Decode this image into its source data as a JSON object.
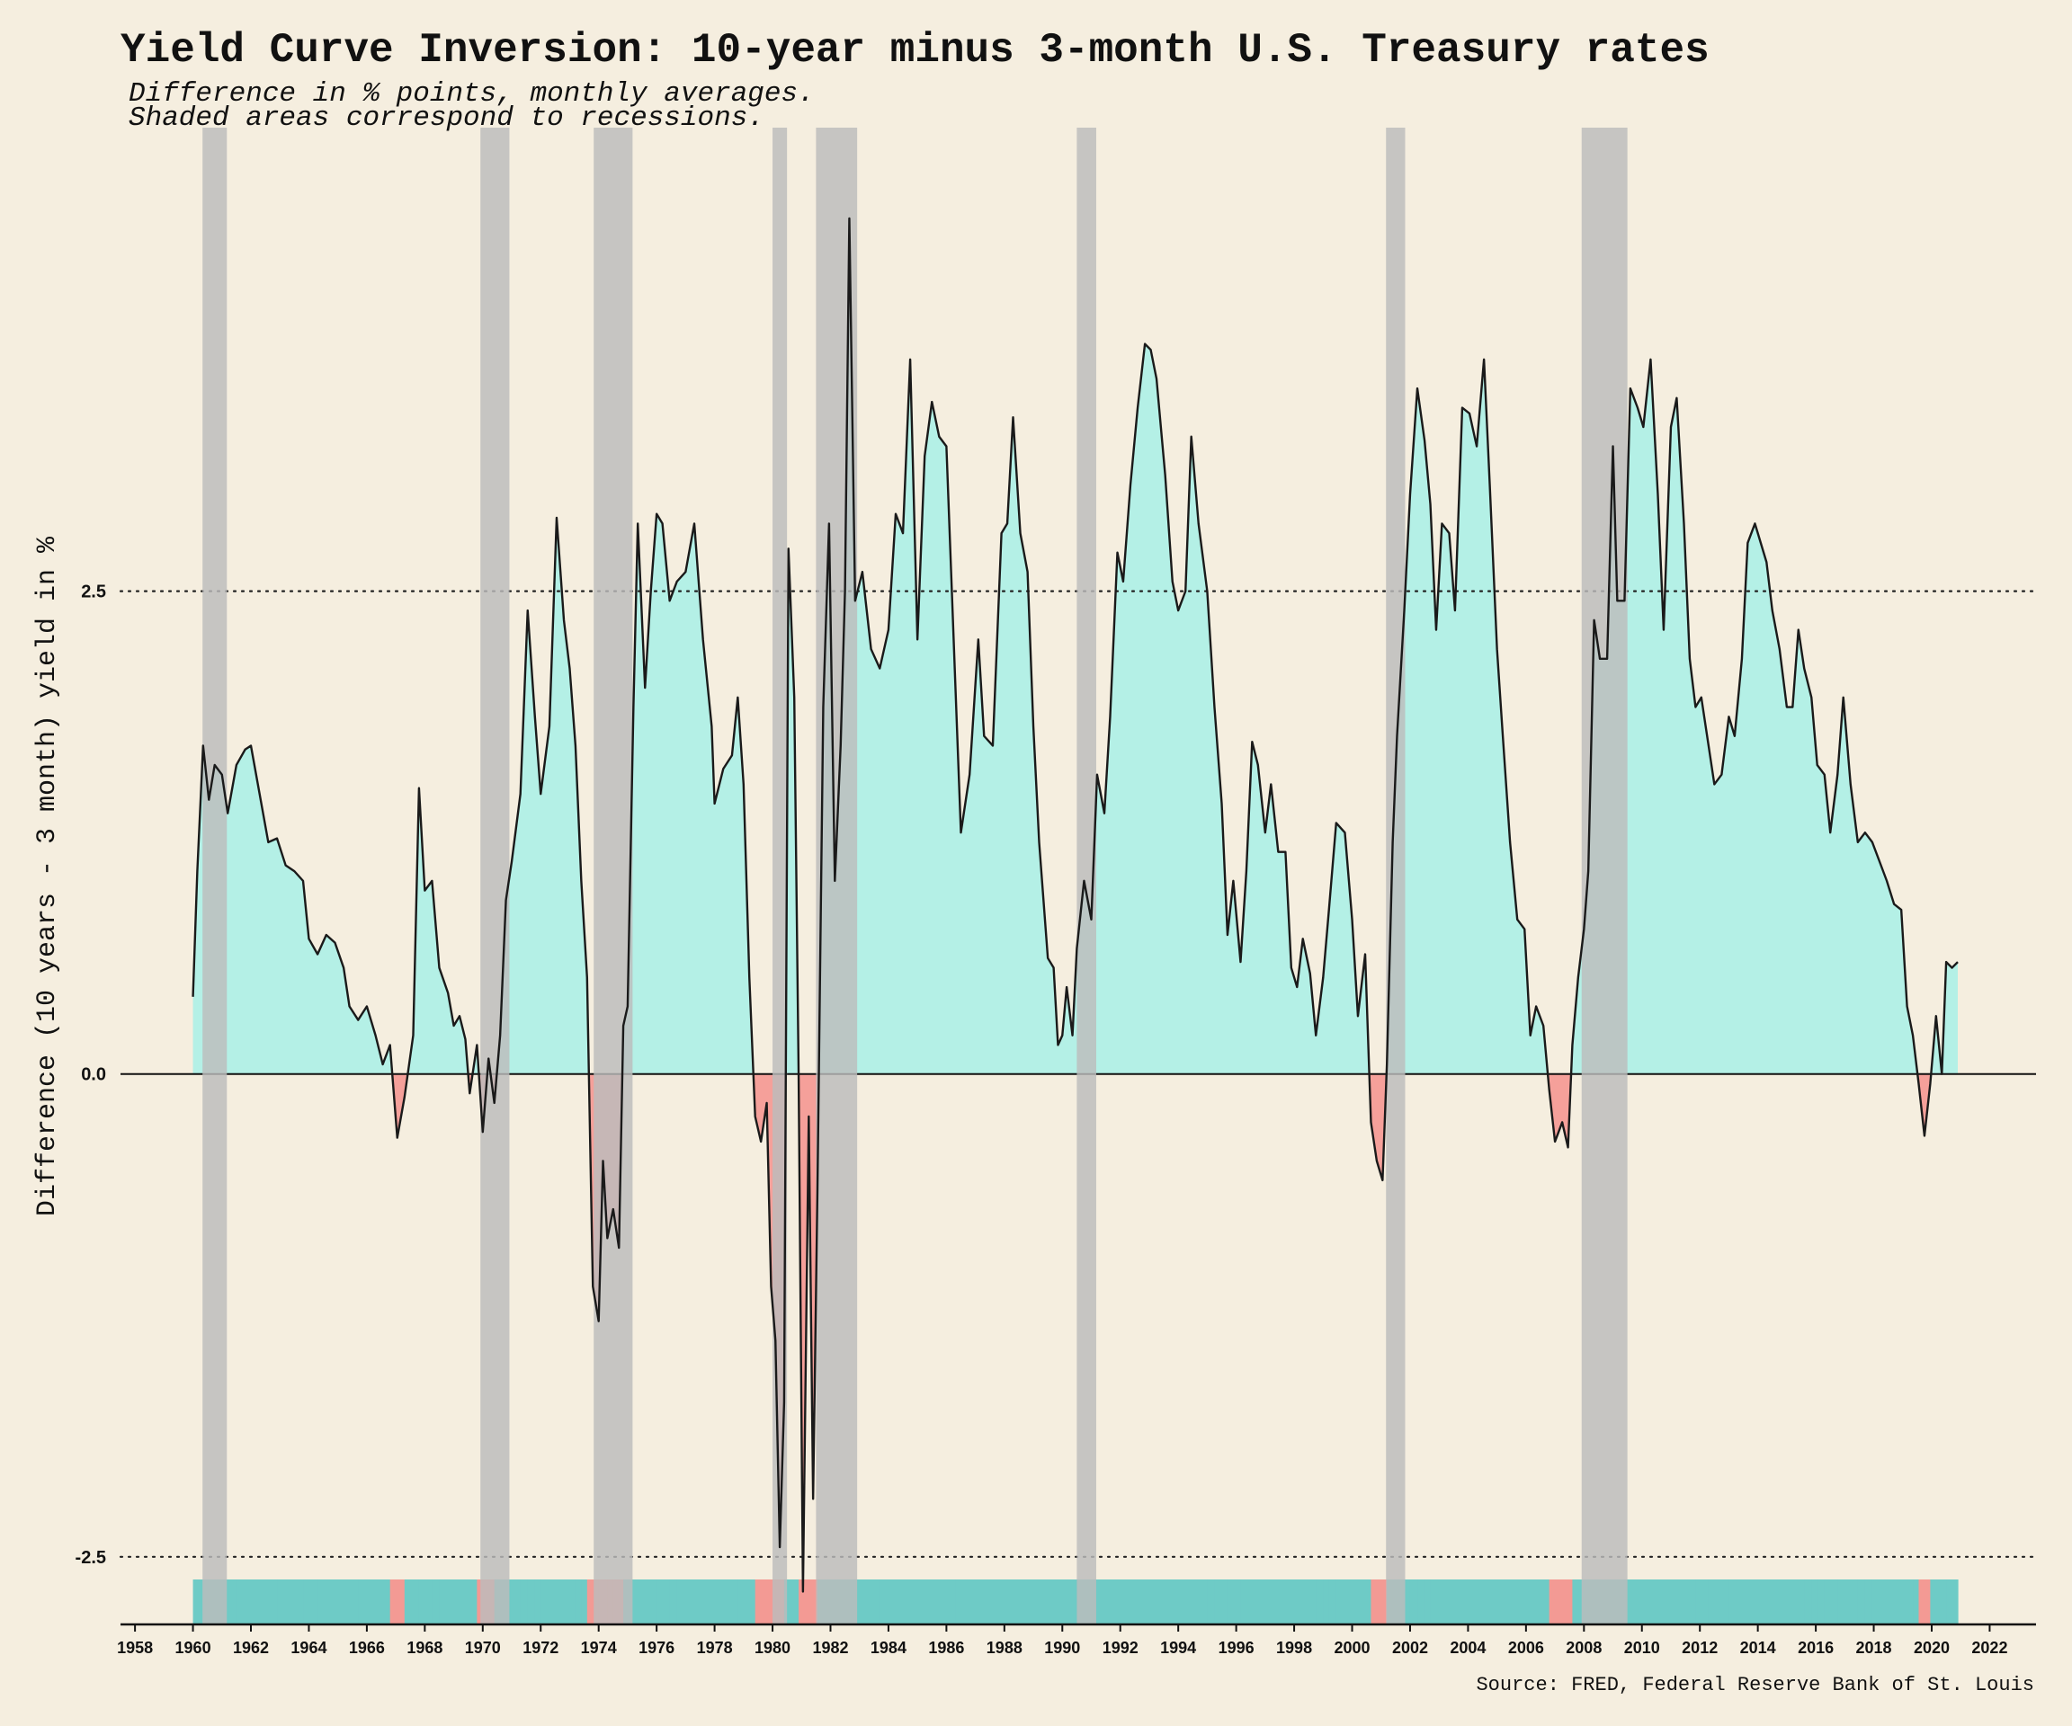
{
  "chart_data": {
    "type": "area",
    "title": "Yield Curve Inversion: 10-year minus 3-month U.S. Treasury rates",
    "subtitle_lines": [
      "Difference in % points, monthly averages.",
      "Shaded areas correspond to recessions."
    ],
    "ylabel": "Difference (10 years - 3 month) yield in %",
    "xlabel": "",
    "source": "Source: FRED, Federal Reserve Bank of St. Louis",
    "xlim": [
      1957.5,
      2023.6
    ],
    "ylim": [
      -2.85,
      4.9
    ],
    "y_ticks": [
      -2.5,
      0.0,
      2.5
    ],
    "y_tick_labels": [
      "-2.5",
      "0.0",
      "2.5"
    ],
    "x_ticks": [
      1958,
      1960,
      1962,
      1964,
      1966,
      1968,
      1970,
      1972,
      1974,
      1976,
      1978,
      1980,
      1982,
      1984,
      1986,
      1988,
      1990,
      1992,
      1994,
      1996,
      1998,
      2000,
      2002,
      2004,
      2006,
      2008,
      2010,
      2012,
      2014,
      2016,
      2018,
      2020,
      2022
    ],
    "x_tick_labels": [
      "1958",
      "1960",
      "1962",
      "1964",
      "1966",
      "1968",
      "1970",
      "1972",
      "1974",
      "1976",
      "1978",
      "1980",
      "1982",
      "1984",
      "1986",
      "1988",
      "1990",
      "1992",
      "1994",
      "1996",
      "1998",
      "2000",
      "2002",
      "2004",
      "2006",
      "2008",
      "2010",
      "2012",
      "2014",
      "2016",
      "2018",
      "2020",
      "2022"
    ],
    "grid": {
      "dotted_lines_at": [
        -2.5,
        2.5
      ],
      "zero_line": true
    },
    "colors": {
      "positive": "#b4f0e6",
      "negative": "#f5a09a",
      "line": "#1a1a1a",
      "recession": "#bcbcbc",
      "background": "#f5eedf",
      "strip_positive": "#6ecbc6",
      "strip_negative": "#f39a94"
    },
    "series": [
      {
        "points": [
          [
            1960.0,
            0.4
          ],
          [
            1960.15,
            1.05
          ],
          [
            1960.35,
            1.7
          ],
          [
            1960.55,
            1.42
          ],
          [
            1960.75,
            1.6
          ],
          [
            1961.0,
            1.55
          ],
          [
            1961.2,
            1.35
          ],
          [
            1961.5,
            1.6
          ],
          [
            1961.8,
            1.68
          ],
          [
            1962.0,
            1.7
          ],
          [
            1962.3,
            1.45
          ],
          [
            1962.6,
            1.2
          ],
          [
            1962.9,
            1.22
          ],
          [
            1963.2,
            1.08
          ],
          [
            1963.5,
            1.05
          ],
          [
            1963.8,
            1.0
          ],
          [
            1964.0,
            0.7
          ],
          [
            1964.3,
            0.62
          ],
          [
            1964.6,
            0.72
          ],
          [
            1964.9,
            0.68
          ],
          [
            1965.2,
            0.55
          ],
          [
            1965.4,
            0.35
          ],
          [
            1965.7,
            0.28
          ],
          [
            1966.0,
            0.35
          ],
          [
            1966.3,
            0.2
          ],
          [
            1966.55,
            0.05
          ],
          [
            1966.8,
            0.15
          ],
          [
            1967.05,
            -0.33
          ],
          [
            1967.3,
            -0.12
          ],
          [
            1967.6,
            0.2
          ],
          [
            1967.8,
            1.48
          ],
          [
            1968.0,
            0.95
          ],
          [
            1968.25,
            1.0
          ],
          [
            1968.5,
            0.55
          ],
          [
            1968.8,
            0.42
          ],
          [
            1969.0,
            0.25
          ],
          [
            1969.2,
            0.3
          ],
          [
            1969.4,
            0.18
          ],
          [
            1969.55,
            -0.1
          ],
          [
            1969.8,
            0.15
          ],
          [
            1970.0,
            -0.3
          ],
          [
            1970.2,
            0.08
          ],
          [
            1970.4,
            -0.15
          ],
          [
            1970.6,
            0.2
          ],
          [
            1970.8,
            0.9
          ],
          [
            1971.0,
            1.1
          ],
          [
            1971.3,
            1.45
          ],
          [
            1971.55,
            2.4
          ],
          [
            1971.8,
            1.85
          ],
          [
            1972.0,
            1.45
          ],
          [
            1972.3,
            1.8
          ],
          [
            1972.55,
            2.88
          ],
          [
            1972.8,
            2.35
          ],
          [
            1973.0,
            2.1
          ],
          [
            1973.2,
            1.7
          ],
          [
            1973.4,
            1.0
          ],
          [
            1973.6,
            0.5
          ],
          [
            1973.8,
            -1.1
          ],
          [
            1974.0,
            -1.28
          ],
          [
            1974.15,
            -0.45
          ],
          [
            1974.3,
            -0.85
          ],
          [
            1974.5,
            -0.7
          ],
          [
            1974.7,
            -0.9
          ],
          [
            1974.85,
            0.25
          ],
          [
            1975.0,
            0.35
          ],
          [
            1975.2,
            1.9
          ],
          [
            1975.35,
            2.85
          ],
          [
            1975.6,
            2.0
          ],
          [
            1975.8,
            2.5
          ],
          [
            1976.0,
            2.9
          ],
          [
            1976.2,
            2.85
          ],
          [
            1976.45,
            2.45
          ],
          [
            1976.7,
            2.55
          ],
          [
            1977.0,
            2.6
          ],
          [
            1977.3,
            2.85
          ],
          [
            1977.6,
            2.25
          ],
          [
            1977.9,
            1.8
          ],
          [
            1978.0,
            1.4
          ],
          [
            1978.3,
            1.58
          ],
          [
            1978.6,
            1.65
          ],
          [
            1978.8,
            1.95
          ],
          [
            1979.0,
            1.5
          ],
          [
            1979.2,
            0.5
          ],
          [
            1979.4,
            -0.22
          ],
          [
            1979.6,
            -0.35
          ],
          [
            1979.8,
            -0.15
          ],
          [
            1979.95,
            -1.1
          ],
          [
            1980.1,
            -1.38
          ],
          [
            1980.25,
            -2.45
          ],
          [
            1980.4,
            -1.7
          ],
          [
            1980.55,
            2.72
          ],
          [
            1980.75,
            1.95
          ],
          [
            1980.9,
            0.0
          ],
          [
            1981.05,
            -2.68
          ],
          [
            1981.25,
            -0.22
          ],
          [
            1981.4,
            -2.2
          ],
          [
            1981.55,
            -0.6
          ],
          [
            1981.75,
            1.9
          ],
          [
            1981.95,
            2.85
          ],
          [
            1982.15,
            1.0
          ],
          [
            1982.35,
            1.7
          ],
          [
            1982.5,
            2.5
          ],
          [
            1982.65,
            4.43
          ],
          [
            1982.85,
            2.45
          ],
          [
            1983.1,
            2.6
          ],
          [
            1983.4,
            2.2
          ],
          [
            1983.7,
            2.1
          ],
          [
            1984.0,
            2.3
          ],
          [
            1984.25,
            2.9
          ],
          [
            1984.5,
            2.8
          ],
          [
            1984.75,
            3.7
          ],
          [
            1985.0,
            2.25
          ],
          [
            1985.25,
            3.2
          ],
          [
            1985.5,
            3.48
          ],
          [
            1985.75,
            3.3
          ],
          [
            1986.0,
            3.25
          ],
          [
            1986.3,
            2.05
          ],
          [
            1986.5,
            1.25
          ],
          [
            1986.8,
            1.55
          ],
          [
            1987.1,
            2.25
          ],
          [
            1987.3,
            1.75
          ],
          [
            1987.6,
            1.7
          ],
          [
            1987.9,
            2.8
          ],
          [
            1988.1,
            2.85
          ],
          [
            1988.3,
            3.4
          ],
          [
            1988.55,
            2.8
          ],
          [
            1988.8,
            2.6
          ],
          [
            1989.0,
            1.8
          ],
          [
            1989.2,
            1.2
          ],
          [
            1989.5,
            0.6
          ],
          [
            1989.7,
            0.55
          ],
          [
            1989.85,
            0.15
          ],
          [
            1990.0,
            0.2
          ],
          [
            1990.15,
            0.45
          ],
          [
            1990.35,
            0.2
          ],
          [
            1990.5,
            0.65
          ],
          [
            1990.75,
            1.0
          ],
          [
            1991.0,
            0.8
          ],
          [
            1991.2,
            1.55
          ],
          [
            1991.45,
            1.35
          ],
          [
            1991.65,
            1.85
          ],
          [
            1991.9,
            2.7
          ],
          [
            1992.1,
            2.55
          ],
          [
            1992.35,
            3.05
          ],
          [
            1992.6,
            3.45
          ],
          [
            1992.85,
            3.78
          ],
          [
            1993.05,
            3.75
          ],
          [
            1993.25,
            3.6
          ],
          [
            1993.55,
            3.1
          ],
          [
            1993.8,
            2.55
          ],
          [
            1994.0,
            2.4
          ],
          [
            1994.25,
            2.5
          ],
          [
            1994.45,
            3.3
          ],
          [
            1994.7,
            2.85
          ],
          [
            1995.0,
            2.5
          ],
          [
            1995.25,
            1.9
          ],
          [
            1995.5,
            1.4
          ],
          [
            1995.7,
            0.72
          ],
          [
            1995.9,
            1.0
          ],
          [
            1996.15,
            0.58
          ],
          [
            1996.35,
            1.05
          ],
          [
            1996.55,
            1.72
          ],
          [
            1996.75,
            1.6
          ],
          [
            1997.0,
            1.25
          ],
          [
            1997.2,
            1.5
          ],
          [
            1997.45,
            1.15
          ],
          [
            1997.7,
            1.15
          ],
          [
            1997.9,
            0.55
          ],
          [
            1998.1,
            0.45
          ],
          [
            1998.3,
            0.7
          ],
          [
            1998.55,
            0.52
          ],
          [
            1998.75,
            0.2
          ],
          [
            1999.0,
            0.5
          ],
          [
            1999.2,
            0.85
          ],
          [
            1999.45,
            1.3
          ],
          [
            1999.75,
            1.25
          ],
          [
            2000.0,
            0.8
          ],
          [
            2000.2,
            0.3
          ],
          [
            2000.45,
            0.62
          ],
          [
            2000.65,
            -0.25
          ],
          [
            2000.85,
            -0.45
          ],
          [
            2001.05,
            -0.55
          ],
          [
            2001.2,
            0.05
          ],
          [
            2001.4,
            1.2
          ],
          [
            2001.55,
            1.75
          ],
          [
            2001.8,
            2.4
          ],
          [
            2002.0,
            3.0
          ],
          [
            2002.25,
            3.55
          ],
          [
            2002.5,
            3.28
          ],
          [
            2002.7,
            2.95
          ],
          [
            2002.9,
            2.3
          ],
          [
            2003.1,
            2.85
          ],
          [
            2003.35,
            2.8
          ],
          [
            2003.55,
            2.4
          ],
          [
            2003.8,
            3.45
          ],
          [
            2004.05,
            3.42
          ],
          [
            2004.3,
            3.25
          ],
          [
            2004.55,
            3.7
          ],
          [
            2004.75,
            3.05
          ],
          [
            2005.0,
            2.2
          ],
          [
            2005.2,
            1.75
          ],
          [
            2005.45,
            1.2
          ],
          [
            2005.7,
            0.8
          ],
          [
            2005.95,
            0.75
          ],
          [
            2006.15,
            0.2
          ],
          [
            2006.35,
            0.35
          ],
          [
            2006.6,
            0.25
          ],
          [
            2006.8,
            -0.08
          ],
          [
            2007.0,
            -0.35
          ],
          [
            2007.25,
            -0.25
          ],
          [
            2007.45,
            -0.38
          ],
          [
            2007.6,
            0.15
          ],
          [
            2007.8,
            0.5
          ],
          [
            2008.0,
            0.75
          ],
          [
            2008.15,
            1.05
          ],
          [
            2008.35,
            2.35
          ],
          [
            2008.55,
            2.15
          ],
          [
            2008.8,
            2.15
          ],
          [
            2009.0,
            3.25
          ],
          [
            2009.15,
            2.45
          ],
          [
            2009.4,
            2.45
          ],
          [
            2009.6,
            3.55
          ],
          [
            2009.85,
            3.45
          ],
          [
            2010.05,
            3.35
          ],
          [
            2010.3,
            3.7
          ],
          [
            2010.55,
            3.0
          ],
          [
            2010.75,
            2.3
          ],
          [
            2011.0,
            3.35
          ],
          [
            2011.2,
            3.5
          ],
          [
            2011.45,
            2.85
          ],
          [
            2011.65,
            2.15
          ],
          [
            2011.85,
            1.9
          ],
          [
            2012.05,
            1.95
          ],
          [
            2012.3,
            1.7
          ],
          [
            2012.5,
            1.5
          ],
          [
            2012.75,
            1.55
          ],
          [
            2013.0,
            1.85
          ],
          [
            2013.2,
            1.75
          ],
          [
            2013.45,
            2.15
          ],
          [
            2013.65,
            2.75
          ],
          [
            2013.9,
            2.85
          ],
          [
            2014.1,
            2.75
          ],
          [
            2014.3,
            2.65
          ],
          [
            2014.5,
            2.4
          ],
          [
            2014.75,
            2.2
          ],
          [
            2015.0,
            1.9
          ],
          [
            2015.2,
            1.9
          ],
          [
            2015.4,
            2.3
          ],
          [
            2015.6,
            2.1
          ],
          [
            2015.85,
            1.95
          ],
          [
            2016.05,
            1.6
          ],
          [
            2016.3,
            1.55
          ],
          [
            2016.5,
            1.25
          ],
          [
            2016.75,
            1.55
          ],
          [
            2016.95,
            1.95
          ],
          [
            2017.2,
            1.5
          ],
          [
            2017.45,
            1.2
          ],
          [
            2017.7,
            1.25
          ],
          [
            2017.95,
            1.2
          ],
          [
            2018.2,
            1.1
          ],
          [
            2018.45,
            1.0
          ],
          [
            2018.7,
            0.88
          ],
          [
            2018.95,
            0.85
          ],
          [
            2019.15,
            0.35
          ],
          [
            2019.35,
            0.2
          ],
          [
            2019.55,
            -0.05
          ],
          [
            2019.75,
            -0.32
          ],
          [
            2019.95,
            -0.05
          ],
          [
            2020.15,
            0.3
          ],
          [
            2020.35,
            0.0
          ],
          [
            2020.5,
            0.58
          ],
          [
            2020.7,
            0.55
          ],
          [
            2020.9,
            0.58
          ]
        ]
      }
    ],
    "recessions": [
      [
        1960.33,
        1961.17
      ],
      [
        1969.92,
        1970.92
      ],
      [
        1973.83,
        1975.17
      ],
      [
        1980.0,
        1980.5
      ],
      [
        1981.5,
        1982.92
      ],
      [
        1990.5,
        1991.17
      ],
      [
        2001.17,
        2001.83
      ],
      [
        2007.92,
        2009.5
      ]
    ]
  }
}
